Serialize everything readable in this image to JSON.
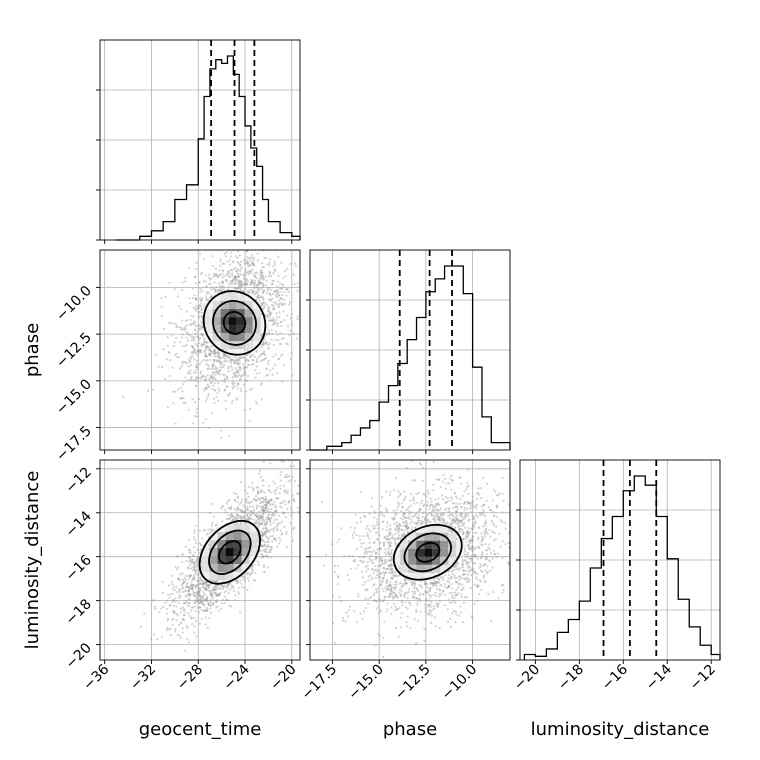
{
  "chart_data": {
    "type": "corner",
    "parameters": [
      {
        "name": "geocent_time",
        "range": [
          -36.4,
          -19.3
        ],
        "ticks": [
          -36,
          -32,
          -28,
          -24,
          -20
        ],
        "tick_labels": [
          "−36",
          "−32",
          "−28",
          "−24",
          "−20"
        ]
      },
      {
        "name": "phase",
        "range": [
          -18.7,
          -8.0
        ],
        "ticks": [
          -17.5,
          -15.0,
          -12.5,
          -10.0
        ],
        "tick_labels": [
          "−17.5",
          "−15.0",
          "−12.5",
          "−10.0"
        ]
      },
      {
        "name": "luminosity_distance",
        "range": [
          -20.7,
          -11.6
        ],
        "ticks": [
          -20,
          -18,
          -16,
          -14,
          -12
        ],
        "tick_labels": [
          "−20",
          "−18",
          "−16",
          "−14",
          "−12"
        ]
      }
    ],
    "histograms": [
      {
        "parameter": "geocent_time",
        "bin_edges": [
          -35.0,
          -34.0,
          -33.0,
          -32.0,
          -31.0,
          -30.0,
          -29.0,
          -28.0,
          -27.5,
          -27.0,
          -26.5,
          -26.0,
          -25.5,
          -25.0,
          -24.5,
          -24.0,
          -23.5,
          -23.0,
          -22.5,
          -22.0,
          -21.0,
          -20.0,
          -19.3
        ],
        "counts": [
          0,
          0,
          0.02,
          0.05,
          0.1,
          0.22,
          0.3,
          0.55,
          0.78,
          0.93,
          0.98,
          0.96,
          1.0,
          0.9,
          0.78,
          0.62,
          0.5,
          0.4,
          0.22,
          0.1,
          0.04,
          0.02
        ],
        "quantiles": [
          -26.9,
          -24.9,
          -23.2
        ]
      },
      {
        "parameter": "phase",
        "bin_edges": [
          -18.7,
          -17.8,
          -17.0,
          -16.5,
          -16.0,
          -15.5,
          -15.0,
          -14.5,
          -14.0,
          -13.5,
          -13.0,
          -12.5,
          -12.0,
          -11.5,
          -11.0,
          -10.5,
          -10.0,
          -9.5,
          -9.0,
          -8.0
        ],
        "counts": [
          0,
          0.02,
          0.04,
          0.08,
          0.12,
          0.16,
          0.26,
          0.35,
          0.47,
          0.6,
          0.72,
          0.86,
          0.93,
          1.0,
          1.0,
          0.85,
          0.45,
          0.18,
          0.04
        ],
        "quantiles": [
          -13.9,
          -12.3,
          -11.1
        ]
      },
      {
        "parameter": "luminosity_distance",
        "bin_edges": [
          -20.5,
          -20.0,
          -19.5,
          -19.0,
          -18.5,
          -18.0,
          -17.5,
          -17.0,
          -16.5,
          -16.0,
          -15.5,
          -15.0,
          -14.5,
          -14.0,
          -13.5,
          -13.0,
          -12.5,
          -12.0,
          -11.6
        ],
        "counts": [
          0.03,
          0.02,
          0.06,
          0.15,
          0.22,
          0.32,
          0.5,
          0.66,
          0.78,
          0.92,
          1.0,
          0.95,
          0.78,
          0.55,
          0.33,
          0.18,
          0.08,
          0.03
        ],
        "quantiles": [
          -16.9,
          -15.7,
          -14.5
        ]
      }
    ],
    "scatter_panels": [
      {
        "x": "geocent_time",
        "y": "phase",
        "mean": [
          -24.9,
          -11.9
        ],
        "sigma": [
          2.3,
          1.9
        ],
        "rho": 0.3,
        "contours": [
          {
            "width": [
              1.8,
              1.2
            ],
            "angle": 35
          },
          {
            "width": [
              3.6,
              2.4
            ],
            "angle": 35
          },
          {
            "width": [
              5.1,
              3.5
            ],
            "angle": 35
          }
        ]
      },
      {
        "x": "geocent_time",
        "y": "luminosity_distance",
        "mean": [
          -25.3,
          -15.8
        ],
        "sigma": [
          2.3,
          1.4
        ],
        "rho": 0.75,
        "contours": [
          {
            "width": [
              2.2,
              0.8
            ],
            "angle": 48
          },
          {
            "width": [
              4.3,
              1.5
            ],
            "angle": 48
          },
          {
            "width": [
              6.2,
              2.2
            ],
            "angle": 48
          }
        ]
      },
      {
        "x": "phase",
        "y": "luminosity_distance",
        "mean": [
          -12.4,
          -15.8
        ],
        "sigma": [
          1.9,
          1.4
        ],
        "rho": 0.25,
        "contours": [
          {
            "width": [
              1.3,
              0.8
            ],
            "angle": 25
          },
          {
            "width": [
              2.6,
              1.6
            ],
            "angle": 25
          },
          {
            "width": [
              3.8,
              2.3
            ],
            "angle": 25
          }
        ]
      }
    ],
    "xlabels": [
      "geocent_time",
      "phase",
      "luminosity_distance"
    ],
    "ylabels": [
      "phase",
      "luminosity_distance"
    ],
    "grid": true,
    "colors": {
      "contour": "#000000",
      "points": "#9e9e9e",
      "density_dark": "#000000",
      "quantile": "#000000",
      "grid": "#b0b0b0"
    }
  }
}
